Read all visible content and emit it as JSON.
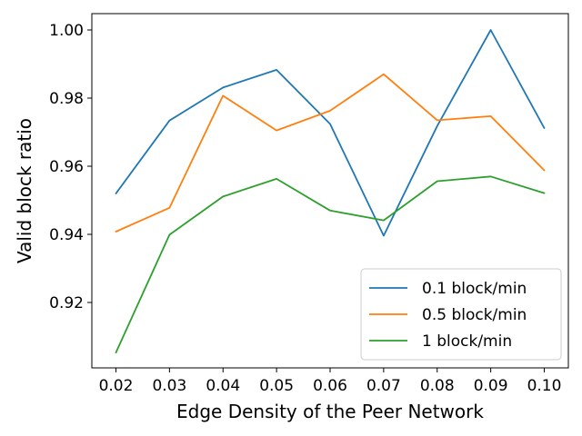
{
  "chart_data": {
    "type": "line",
    "title": "",
    "xlabel": "Edge Density of the Peer Network",
    "ylabel": "Valid block ratio",
    "x": [
      0.02,
      0.03,
      0.04,
      0.05,
      0.06,
      0.07,
      0.08,
      0.09,
      0.1
    ],
    "x_tick_labels": [
      "0.02",
      "0.03",
      "0.04",
      "0.05",
      "0.06",
      "0.07",
      "0.08",
      "0.09",
      "0.10"
    ],
    "xlim": [
      0.0155,
      0.1045
    ],
    "ylim": [
      0.9008,
      1.0048
    ],
    "y_ticks": [
      0.92,
      0.94,
      0.96,
      0.98,
      1.0
    ],
    "y_tick_labels": [
      "0.92",
      "0.94",
      "0.96",
      "0.98",
      "1.00"
    ],
    "grid": false,
    "legend_position": "lower-right",
    "series": [
      {
        "name": "0.1 block/min",
        "color": "#1f77b4",
        "values": [
          0.952,
          0.9734,
          0.9831,
          0.9883,
          0.9724,
          0.9396,
          0.9718,
          1.0,
          0.9712
        ]
      },
      {
        "name": "0.5 block/min",
        "color": "#ff7f0e",
        "values": [
          0.9408,
          0.9478,
          0.9807,
          0.9705,
          0.9763,
          0.987,
          0.9735,
          0.9747,
          0.9588
        ]
      },
      {
        "name": "1 block/min",
        "color": "#2ca02c",
        "values": [
          0.9053,
          0.9399,
          0.9511,
          0.9563,
          0.947,
          0.9441,
          0.9556,
          0.957,
          0.9521
        ]
      }
    ]
  }
}
